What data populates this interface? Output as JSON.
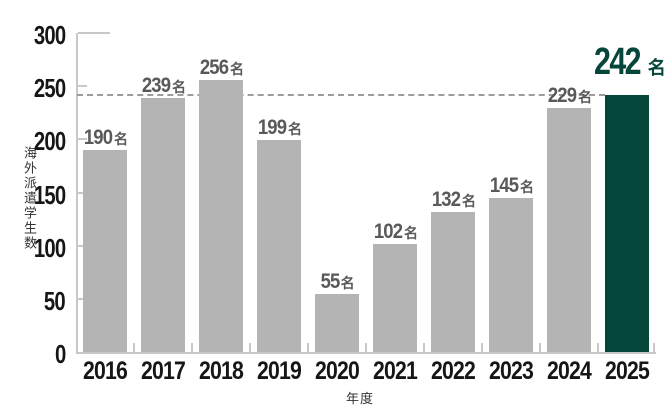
{
  "chart_data": {
    "type": "bar",
    "title": "",
    "categories": [
      "2016",
      "2017",
      "2018",
      "2019",
      "2020",
      "2021",
      "2022",
      "2023",
      "2024",
      "2025"
    ],
    "values": [
      190,
      239,
      256,
      199,
      55,
      102,
      132,
      145,
      229,
      242
    ],
    "unit": "名",
    "ylabel": "海外派遣学生数",
    "xlabel": "年度",
    "ylim": [
      0,
      300
    ],
    "yticks": [
      0,
      50,
      100,
      150,
      200,
      250,
      300
    ],
    "grid": "off",
    "legend": "none",
    "highlight_index": 9,
    "reference_line_value": 242,
    "colors": {
      "bar": "#b4b4b4",
      "highlight_bar": "#064539",
      "value_label": "#595959",
      "highlight_label": "#064539",
      "axis": "#c8c8c8",
      "dashed_line": "#9c9c9c",
      "tick_label": "#161616"
    }
  }
}
